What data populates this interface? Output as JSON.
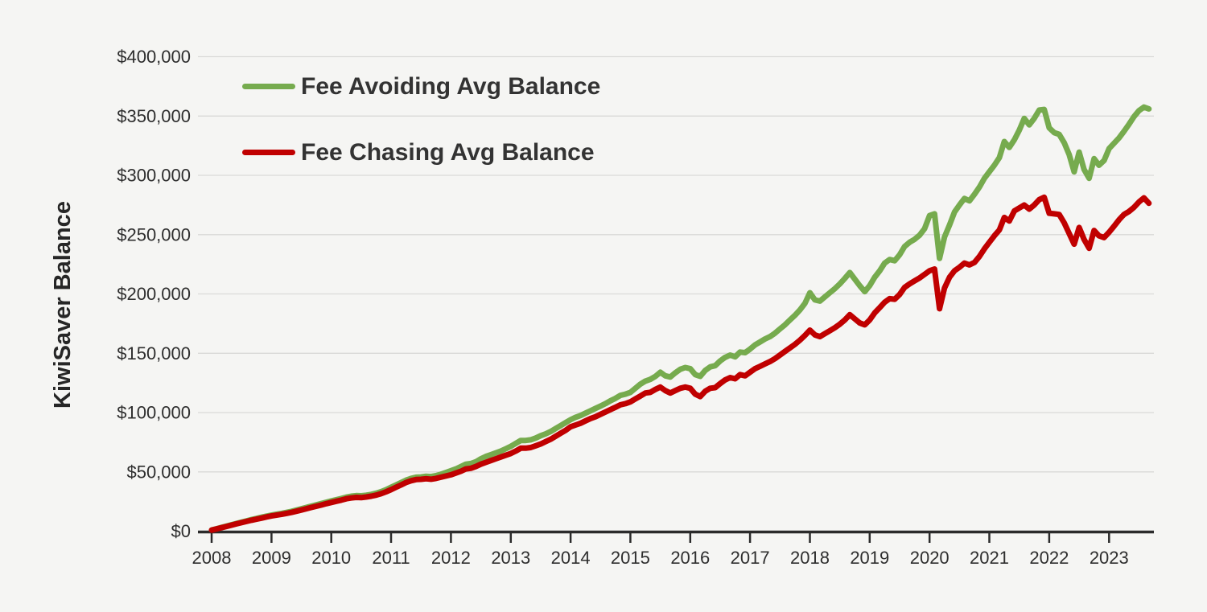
{
  "colors": {
    "background": "#f5f5f3",
    "axis": "#2b2b2b",
    "gridline": "#d9d9d7",
    "tick_label_text": "#2e2e2e",
    "legend_text": "#333333"
  },
  "chart_data": {
    "type": "line",
    "title": "",
    "xlabel": "",
    "ylabel": "KiwiSaver Balance",
    "grid": "horizontal",
    "legend_position": "top-left",
    "x_axis": {
      "min": 2008,
      "max": 2023.95,
      "ticks": [
        2008,
        2009,
        2010,
        2011,
        2012,
        2013,
        2014,
        2015,
        2016,
        2017,
        2018,
        2019,
        2020,
        2021,
        2022,
        2023
      ]
    },
    "y_axis": {
      "min": 0,
      "max": 400000,
      "ticks": [
        {
          "value": 0,
          "label": "$0"
        },
        {
          "value": 50000,
          "label": "$50,000"
        },
        {
          "value": 100000,
          "label": "$100,000"
        },
        {
          "value": 150000,
          "label": "$150,000"
        },
        {
          "value": 200000,
          "label": "$200,000"
        },
        {
          "value": 250000,
          "label": "$250,000"
        },
        {
          "value": 300000,
          "label": "$300,000"
        },
        {
          "value": 350000,
          "label": "$350,000"
        },
        {
          "value": 400000,
          "label": "$400,000"
        }
      ]
    },
    "x_unit": "decimal year (monthly data, Jan 2008 - Sep 2023)",
    "x": [
      2008.0,
      2008.083,
      2008.167,
      2008.25,
      2008.333,
      2008.417,
      2008.5,
      2008.583,
      2008.667,
      2008.75,
      2008.833,
      2008.917,
      2009.0,
      2009.083,
      2009.167,
      2009.25,
      2009.333,
      2009.417,
      2009.5,
      2009.583,
      2009.667,
      2009.75,
      2009.833,
      2009.917,
      2010.0,
      2010.083,
      2010.167,
      2010.25,
      2010.333,
      2010.417,
      2010.5,
      2010.583,
      2010.667,
      2010.75,
      2010.833,
      2010.917,
      2011.0,
      2011.083,
      2011.167,
      2011.25,
      2011.333,
      2011.417,
      2011.5,
      2011.583,
      2011.667,
      2011.75,
      2011.833,
      2011.917,
      2012.0,
      2012.083,
      2012.167,
      2012.25,
      2012.333,
      2012.417,
      2012.5,
      2012.583,
      2012.667,
      2012.75,
      2012.833,
      2012.917,
      2013.0,
      2013.083,
      2013.167,
      2013.25,
      2013.333,
      2013.417,
      2013.5,
      2013.583,
      2013.667,
      2013.75,
      2013.833,
      2013.917,
      2014.0,
      2014.083,
      2014.167,
      2014.25,
      2014.333,
      2014.417,
      2014.5,
      2014.583,
      2014.667,
      2014.75,
      2014.833,
      2014.917,
      2015.0,
      2015.083,
      2015.167,
      2015.25,
      2015.333,
      2015.417,
      2015.5,
      2015.583,
      2015.667,
      2015.75,
      2015.833,
      2015.917,
      2016.0,
      2016.083,
      2016.167,
      2016.25,
      2016.333,
      2016.417,
      2016.5,
      2016.583,
      2016.667,
      2016.75,
      2016.833,
      2016.917,
      2017.0,
      2017.083,
      2017.167,
      2017.25,
      2017.333,
      2017.417,
      2017.5,
      2017.583,
      2017.667,
      2017.75,
      2017.833,
      2017.917,
      2018.0,
      2018.083,
      2018.167,
      2018.25,
      2018.333,
      2018.417,
      2018.5,
      2018.583,
      2018.667,
      2018.75,
      2018.833,
      2018.917,
      2019.0,
      2019.083,
      2019.167,
      2019.25,
      2019.333,
      2019.417,
      2019.5,
      2019.583,
      2019.667,
      2019.75,
      2019.833,
      2019.917,
      2020.0,
      2020.083,
      2020.167,
      2020.25,
      2020.333,
      2020.417,
      2020.5,
      2020.583,
      2020.667,
      2020.75,
      2020.833,
      2020.917,
      2021.0,
      2021.083,
      2021.167,
      2021.25,
      2021.333,
      2021.417,
      2021.5,
      2021.583,
      2021.667,
      2021.75,
      2021.833,
      2021.917,
      2022.0,
      2022.083,
      2022.167,
      2022.25,
      2022.333,
      2022.417,
      2022.5,
      2022.583,
      2022.667,
      2022.75,
      2022.833,
      2022.917,
      2023.0,
      2023.083,
      2023.167,
      2023.25,
      2023.333,
      2023.417,
      2023.5,
      2023.583,
      2023.667
    ],
    "series": [
      {
        "id": "fee-avoiding",
        "name": "Fee Avoiding Avg Balance",
        "color": "#76ab4e",
        "values": [
          1000,
          2000,
          3200,
          4300,
          5400,
          6500,
          7600,
          8700,
          9800,
          10700,
          11700,
          12700,
          13500,
          14300,
          15000,
          15800,
          16700,
          17800,
          18900,
          20000,
          21100,
          22200,
          23300,
          24400,
          25500,
          26500,
          27500,
          28700,
          29500,
          30000,
          29800,
          30300,
          31000,
          32000,
          33300,
          35000,
          37000,
          39000,
          41000,
          43000,
          44500,
          45500,
          45700,
          46300,
          46000,
          46800,
          48000,
          49500,
          51000,
          52500,
          54500,
          56500,
          57000,
          58500,
          61000,
          63000,
          64500,
          66000,
          67500,
          69500,
          71500,
          74000,
          76500,
          76500,
          77000,
          78500,
          80500,
          82000,
          84000,
          86500,
          89000,
          91500,
          94000,
          96000,
          97500,
          99500,
          101500,
          103500,
          105500,
          107500,
          110000,
          112000,
          114500,
          115500,
          117000,
          120500,
          124000,
          126500,
          128000,
          130500,
          134000,
          131000,
          130000,
          133500,
          136500,
          138000,
          137000,
          132000,
          130500,
          135500,
          138500,
          139500,
          143500,
          146500,
          148500,
          147000,
          151000,
          150500,
          153500,
          157000,
          159500,
          162000,
          164000,
          167000,
          170500,
          174000,
          178000,
          182000,
          186500,
          192000,
          201000,
          195000,
          194000,
          197500,
          201000,
          204500,
          208500,
          213000,
          218000,
          212500,
          207000,
          202000,
          207000,
          214000,
          219500,
          226000,
          229000,
          228000,
          233000,
          240000,
          243500,
          246000,
          249500,
          255000,
          266000,
          267500,
          230000,
          248000,
          258000,
          269000,
          275000,
          280500,
          278500,
          284000,
          290000,
          297500,
          303000,
          308500,
          315000,
          328500,
          323500,
          330000,
          338000,
          348000,
          342500,
          348000,
          355000,
          355500,
          340000,
          336000,
          334500,
          327500,
          317500,
          303000,
          319500,
          305000,
          297500,
          314000,
          308500,
          312500,
          322500,
          327000,
          331500,
          337000,
          343000,
          349500,
          354500,
          357500,
          356000
        ]
      },
      {
        "id": "fee-chasing",
        "name": "Fee Chasing Avg Balance",
        "color": "#c00000",
        "values": [
          900,
          1900,
          3000,
          4000,
          5100,
          6200,
          7200,
          8200,
          9200,
          10100,
          11000,
          12000,
          12800,
          13500,
          14200,
          15000,
          15800,
          16800,
          17800,
          18900,
          20000,
          21000,
          22000,
          23200,
          24200,
          25200,
          26200,
          27300,
          28000,
          28500,
          28300,
          28800,
          29500,
          30400,
          31600,
          33200,
          35000,
          37000,
          39000,
          41000,
          42500,
          43500,
          43700,
          44200,
          43800,
          44500,
          45500,
          46500,
          47500,
          49000,
          50500,
          52500,
          53000,
          54500,
          56500,
          58000,
          59500,
          61000,
          62500,
          64000,
          65500,
          67500,
          70000,
          70000,
          70500,
          72000,
          73500,
          75500,
          77500,
          80000,
          82500,
          85000,
          88000,
          89500,
          91000,
          93000,
          95000,
          96500,
          98500,
          100500,
          102500,
          104500,
          106500,
          107500,
          109000,
          111500,
          114000,
          116500,
          117000,
          119500,
          121500,
          118500,
          116500,
          118500,
          120500,
          121500,
          120500,
          115500,
          113500,
          118000,
          120500,
          121000,
          124500,
          127500,
          129500,
          128500,
          132000,
          131000,
          134000,
          137000,
          139000,
          141000,
          143000,
          145500,
          148500,
          151500,
          154500,
          157500,
          161000,
          165000,
          169500,
          165500,
          164000,
          166500,
          169000,
          171500,
          174500,
          178000,
          182500,
          179000,
          175500,
          174000,
          178000,
          184000,
          188500,
          193000,
          196000,
          195500,
          199500,
          205500,
          208500,
          211000,
          213500,
          216500,
          219500,
          221000,
          187500,
          205000,
          214000,
          219500,
          222500,
          226000,
          224500,
          226500,
          231500,
          238000,
          243500,
          249000,
          254000,
          264500,
          261500,
          270000,
          272500,
          275000,
          271500,
          275000,
          279500,
          281500,
          268000,
          267500,
          267000,
          260000,
          251000,
          242000,
          256000,
          246000,
          238500,
          253500,
          249000,
          247500,
          252000,
          257000,
          262500,
          267000,
          269500,
          273000,
          277500,
          281000,
          276500
        ]
      }
    ]
  }
}
